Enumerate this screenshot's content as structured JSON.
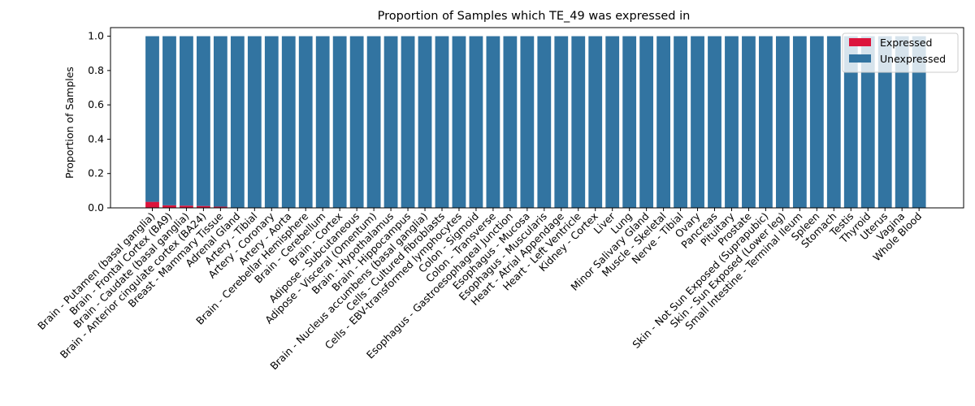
{
  "chart_data": {
    "type": "bar",
    "stacked": true,
    "title": "Proportion of Samples which TE_49 was expressed in",
    "xlabel": "",
    "ylabel": "Proportion of Samples",
    "ylim": [
      0,
      1.05
    ],
    "yticks": [
      "0.0",
      "0.2",
      "0.4",
      "0.6",
      "0.8",
      "1.0"
    ],
    "grid": false,
    "legend_position": "top-right",
    "categories": [
      "Brain - Putamen (basal ganglia)",
      "Brain - Frontal Cortex (BA9)",
      "Brain - Caudate (basal ganglia)",
      "Brain - Anterior cingulate cortex (BA24)",
      "Breast - Mammary Tissue",
      "Adrenal Gland",
      "Artery - Tibial",
      "Artery - Coronary",
      "Artery - Aorta",
      "Brain - Cerebellar Hemisphere",
      "Brain - Cerebellum",
      "Brain - Cortex",
      "Adipose - Subcutaneous",
      "Adipose - Visceral (Omentum)",
      "Brain - Hypothalamus",
      "Brain - Hippocampus",
      "Brain - Nucleus accumbens (basal ganglia)",
      "Cells - Cultured fibroblasts",
      "Cells - EBV-transformed lymphocytes",
      "Colon - Sigmoid",
      "Colon - Transverse",
      "Esophagus - Gastroesophageal Junction",
      "Esophagus - Mucosa",
      "Esophagus - Muscularis",
      "Heart - Atrial Appendage",
      "Heart - Left Ventricle",
      "Kidney - Cortex",
      "Liver",
      "Lung",
      "Minor Salivary Gland",
      "Muscle - Skeletal",
      "Nerve - Tibial",
      "Ovary",
      "Pancreas",
      "Pituitary",
      "Prostate",
      "Skin - Not Sun Exposed (Suprapubic)",
      "Skin - Sun Exposed (Lower leg)",
      "Small Intestine - Terminal Ileum",
      "Spleen",
      "Stomach",
      "Testis",
      "Thyroid",
      "Uterus",
      "Vagina",
      "Whole Blood"
    ],
    "series": [
      {
        "name": "Expressed",
        "color": "#dc143c",
        "values": [
          0.035,
          0.015,
          0.013,
          0.011,
          0.007,
          0,
          0,
          0,
          0,
          0,
          0,
          0,
          0,
          0,
          0,
          0,
          0,
          0,
          0,
          0,
          0,
          0,
          0,
          0,
          0,
          0,
          0,
          0,
          0,
          0,
          0,
          0,
          0,
          0,
          0,
          0,
          0,
          0,
          0,
          0,
          0,
          0,
          0,
          0,
          0,
          0
        ]
      },
      {
        "name": "Unexpressed",
        "color": "#3274a1",
        "values": [
          0.965,
          0.985,
          0.987,
          0.989,
          0.993,
          1,
          1,
          1,
          1,
          1,
          1,
          1,
          1,
          1,
          1,
          1,
          1,
          1,
          1,
          1,
          1,
          1,
          1,
          1,
          1,
          1,
          1,
          1,
          1,
          1,
          1,
          1,
          1,
          1,
          1,
          1,
          1,
          1,
          1,
          1,
          1,
          1,
          1,
          1,
          1,
          1
        ]
      }
    ]
  }
}
